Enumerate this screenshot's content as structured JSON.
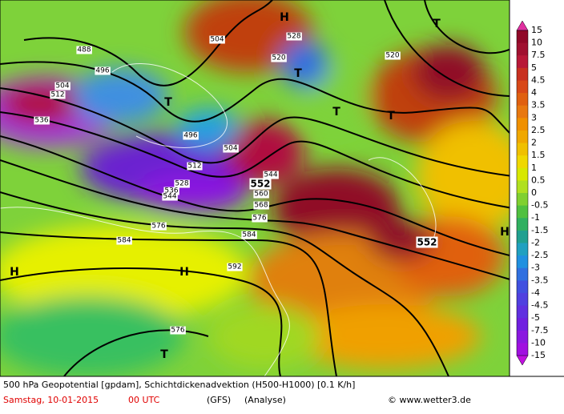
{
  "map": {
    "colorbar": [
      15,
      10,
      7.5,
      5,
      4.5,
      4,
      3.5,
      3,
      2.5,
      2,
      1.5,
      1,
      0.5,
      0,
      -0.5,
      -1,
      -1.5,
      -2,
      -2.5,
      -3,
      -3.5,
      -4,
      -4.5,
      -5,
      -7.5,
      -10,
      -15
    ],
    "contour_labels": [
      488,
      496,
      504,
      512,
      536,
      520,
      528,
      544,
      552,
      560,
      568,
      576,
      584,
      592,
      512,
      504,
      528,
      536,
      544,
      552,
      576,
      584,
      576,
      496,
      504,
      520
    ],
    "pressure_marks": [
      "H",
      "T",
      "T",
      "T",
      "H",
      "H",
      "T",
      "T",
      "T",
      "H"
    ],
    "footer": {
      "line1": "500 hPa Geopotential [gpdam], Schichtdickenadvektion (H500-H1000) [0.1 K/h]",
      "date": "Samstag, 10-01-2015",
      "time": "00 UTC",
      "model": "(GFS)",
      "run": "(Analyse)",
      "credit": "© www.wetter3.de"
    }
  }
}
